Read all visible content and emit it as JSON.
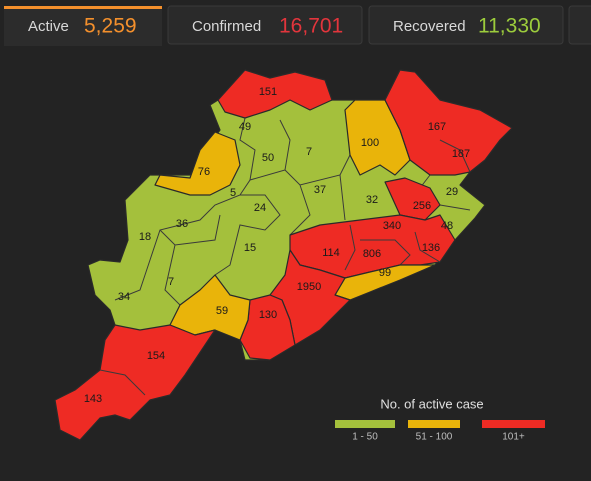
{
  "tabs": [
    {
      "label": "Active",
      "value": "5,259",
      "color": "#f4902c"
    },
    {
      "label": "Confirmed",
      "value": "16,701",
      "color": "#e2353c"
    },
    {
      "label": "Recovered",
      "value": "11,330",
      "color": "#9ccc3c"
    }
  ],
  "map": {
    "districts": [
      {
        "label": "151"
      },
      {
        "label": "49"
      },
      {
        "label": "50"
      },
      {
        "label": "7"
      },
      {
        "label": "100"
      },
      {
        "label": "167"
      },
      {
        "label": "187"
      },
      {
        "label": "76"
      },
      {
        "label": "5"
      },
      {
        "label": "37"
      },
      {
        "label": "32"
      },
      {
        "label": "29"
      },
      {
        "label": "256"
      },
      {
        "label": "24"
      },
      {
        "label": "36"
      },
      {
        "label": "18"
      },
      {
        "label": "340"
      },
      {
        "label": "48"
      },
      {
        "label": "114"
      },
      {
        "label": "806"
      },
      {
        "label": "136"
      },
      {
        "label": "15"
      },
      {
        "label": "99"
      },
      {
        "label": "7"
      },
      {
        "label": "34"
      },
      {
        "label": "1950"
      },
      {
        "label": "59"
      },
      {
        "label": "130"
      },
      {
        "label": "154"
      },
      {
        "label": "143"
      }
    ]
  },
  "legend": {
    "title": "No. of active case",
    "items": [
      {
        "label": "1 - 50",
        "color": "#a4c03c"
      },
      {
        "label": "51 - 100",
        "color": "#e9b40a"
      },
      {
        "label": "101+",
        "color": "#ee2b24"
      }
    ]
  }
}
